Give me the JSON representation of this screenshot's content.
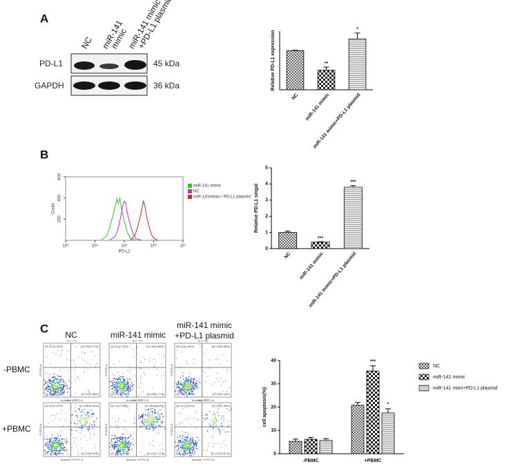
{
  "panel_labels": [
    "A",
    "B",
    "C"
  ],
  "blot": {
    "lanes": [
      [
        "NC"
      ],
      [
        "miR-141",
        "mimic"
      ],
      [
        "miR-141 mimic",
        "+PD-L1 plasmid"
      ]
    ],
    "rows": [
      {
        "label": "PD-L1",
        "size": "45 kDa"
      },
      {
        "label": "GAPDH",
        "size": "36 kDa"
      }
    ]
  },
  "flow": {
    "columns": [
      [
        "NC"
      ],
      [
        "miR-141 mimic"
      ],
      [
        "miR-141 mimic",
        "+PD-L1 plasmid"
      ]
    ],
    "rows": [
      "-PBMC",
      "+PBMC"
    ],
    "x_axis": "Annexin V FITC-A",
    "y_axis": "PI ECD-A",
    "plots": [
      [
        {
          "title": "S-1 : P1",
          "UL": "Q2-UL(2.09%)",
          "UR": "Q2-UR(4.71%)",
          "LL": "Q2-LL(91.61%)",
          "LR": "Q2-LR(1.59%)"
        },
        {
          "title": "S-2 : P1",
          "UL": "Q2-UL(1.76%)",
          "UR": "Q2-UR(4.88%)",
          "LL": "Q2-LL(90.59%)",
          "LR": "Q2-LR(2.77%)"
        },
        {
          "title": "S-3 : P1",
          "UL": "Q2-UL(1.49%)",
          "UR": "Q2-UR(3.08%)",
          "LL": "Q2-LL(93.01%)",
          "LR": "Q2-LR(2.43%)"
        }
      ],
      [
        {
          "title": "S-4 : P1",
          "UL": "Q2-UL(2.92%)",
          "UR": "Q2-UR(16.49%)",
          "LL": "Q2-LL(71.60%)",
          "LR": "Q2-LR(9.00%)"
        },
        {
          "title": "S-5 : P1",
          "UL": "Q2-UL(7.00%)",
          "UR": "Q2-UR(28.52%)",
          "LL": "Q2-LL(57.37%)",
          "LR": "Q2-LR(7.17%)"
        },
        {
          "title": "S-6 : P1",
          "UL": "Q2-UL(1.29%)",
          "UR": "Q2-UR(7.38%)",
          "LL": "Q2-LL(80.70%)",
          "LR": "Q2-LR(10.67%)"
        }
      ]
    ]
  },
  "chart_data": [
    {
      "type": "bar",
      "ylabel": "Relative PD-L1 expression",
      "categories": [
        "NC",
        "miR-141 mimic",
        "miR-141 mimic+PD-L1 plasmid"
      ],
      "values": [
        1.0,
        0.5,
        1.3
      ],
      "errors": [
        0.01,
        0.08,
        0.15
      ],
      "annotations": [
        null,
        "**",
        "*"
      ],
      "patterns": [
        "cross",
        "checker",
        "hlines"
      ],
      "ylim": [
        0,
        1.5
      ]
    },
    {
      "type": "line",
      "xlabel": "PD-L1",
      "ylabel": "Count",
      "xscale": "log",
      "xlim": [
        1000,
        10000000
      ],
      "xticks": [
        {
          "value": 1000,
          "label": "10³"
        },
        {
          "value": 10000,
          "label": "10⁴"
        },
        {
          "value": 100000,
          "label": "10⁵"
        },
        {
          "value": 1000000,
          "label": "10⁶"
        },
        {
          "value": 10000000,
          "label": "10⁷"
        }
      ],
      "ylim": [
        0,
        600
      ],
      "yticks": [
        200,
        400,
        600
      ],
      "legend": "right",
      "series": [
        {
          "name": "miR-141 mimic",
          "color": "#22cc22",
          "x": [
            15849,
            25119,
            31623,
            39811,
            50119,
            56234,
            63096,
            70795,
            79433,
            100000,
            125893,
            158489,
            251189
          ],
          "values": [
            0,
            40,
            120,
            220,
            330,
            390,
            350,
            400,
            300,
            180,
            80,
            20,
            0
          ]
        },
        {
          "name": "NC",
          "color": "#cc22cc",
          "x": [
            31623,
            50119,
            63096,
            79433,
            89125,
            100000,
            112202,
            125893,
            158489,
            199526,
            251189,
            398107
          ],
          "values": [
            0,
            40,
            120,
            250,
            330,
            370,
            350,
            260,
            150,
            60,
            15,
            0
          ]
        },
        {
          "name": "miR-141mimic+ PD-L1 plasmid",
          "color": "#dd2222",
          "x": [
            158489,
            223872,
            281838,
            354813,
            398107,
            446684,
            501187,
            562341,
            707946,
            891251,
            1122018,
            1412538
          ],
          "values": [
            0,
            40,
            120,
            230,
            300,
            370,
            330,
            240,
            120,
            40,
            10,
            0
          ]
        }
      ]
    },
    {
      "type": "bar",
      "ylabel": "Relative PD-L1 singal",
      "categories": [
        "NC",
        "miR-141 mimic",
        "miR-141 mimic+PD-L1 plasmid"
      ],
      "values": [
        1.0,
        0.4,
        3.8
      ],
      "errors": [
        0.08,
        0.03,
        0.1
      ],
      "annotations": [
        null,
        "***",
        "***"
      ],
      "patterns": [
        "cross",
        "checker",
        "hlines"
      ],
      "ylim": [
        0,
        5
      ],
      "yticks": [
        0,
        1,
        2,
        3,
        4,
        5
      ]
    },
    {
      "type": "grouped_bar",
      "ylabel": "cell apoptosis(%)",
      "categories": [
        "-PBMC",
        "+PBMC"
      ],
      "ylim": [
        0,
        40
      ],
      "yticks": [
        0,
        10,
        20,
        30,
        40
      ],
      "legend": "right",
      "series": [
        {
          "name": "NC",
          "pattern": "cross",
          "values": [
            5.3,
            20.8
          ],
          "errors": [
            1.0,
            1.2
          ],
          "annotations": [
            null,
            null
          ]
        },
        {
          "name": "miR-141 mimic",
          "pattern": "checker",
          "values": [
            6.2,
            35.5
          ],
          "errors": [
            0.8,
            2.2
          ],
          "annotations": [
            null,
            "***"
          ]
        },
        {
          "name": "miR-141 mimi+PD-L1 plasmid",
          "pattern": "hlines",
          "values": [
            5.7,
            17.5
          ],
          "errors": [
            0.8,
            1.8
          ],
          "annotations": [
            null,
            "*"
          ]
        }
      ]
    }
  ]
}
